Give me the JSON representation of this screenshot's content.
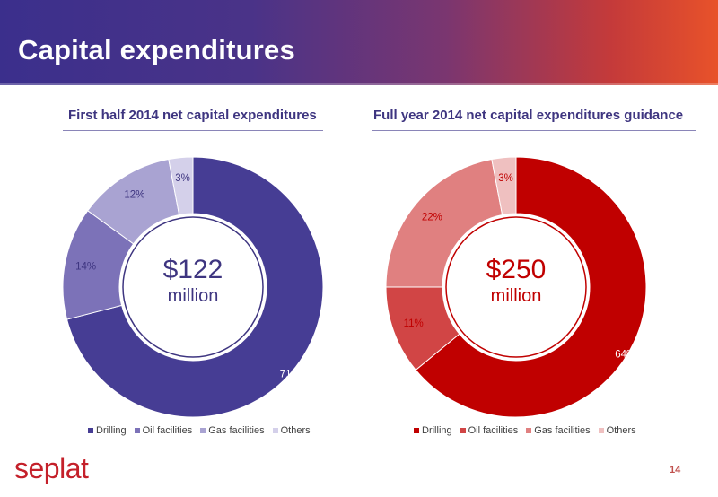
{
  "slide": {
    "title": "Capital expenditures",
    "page_number": "14",
    "logo_text": "seplat"
  },
  "chart_data": [
    {
      "type": "pie",
      "donut": true,
      "title": "First half 2014 net capital expenditures",
      "center_amount": "$122",
      "center_unit": "million",
      "categories": [
        "Drilling",
        "Oil facilities",
        "Gas facilities",
        "Others"
      ],
      "values": [
        71,
        14,
        12,
        3
      ],
      "labels": [
        "71%",
        "14%",
        "12%",
        "3%"
      ],
      "colors": [
        "#463d94",
        "#7c72b8",
        "#a9a3d2",
        "#d4d0ea"
      ],
      "accent_color": "#3e3580",
      "legend_position": "bottom"
    },
    {
      "type": "pie",
      "donut": true,
      "title": "Full year 2014 net capital expenditures guidance",
      "center_amount": "$250",
      "center_unit": "million",
      "categories": [
        "Drilling",
        "Oil facilities",
        "Gas facilities",
        "Others"
      ],
      "values": [
        64,
        11,
        22,
        3
      ],
      "labels": [
        "64%",
        "11%",
        "22%",
        "3%"
      ],
      "colors": [
        "#c00000",
        "#d14545",
        "#e08080",
        "#efc0c0"
      ],
      "accent_color": "#c00000",
      "legend_position": "bottom"
    }
  ]
}
